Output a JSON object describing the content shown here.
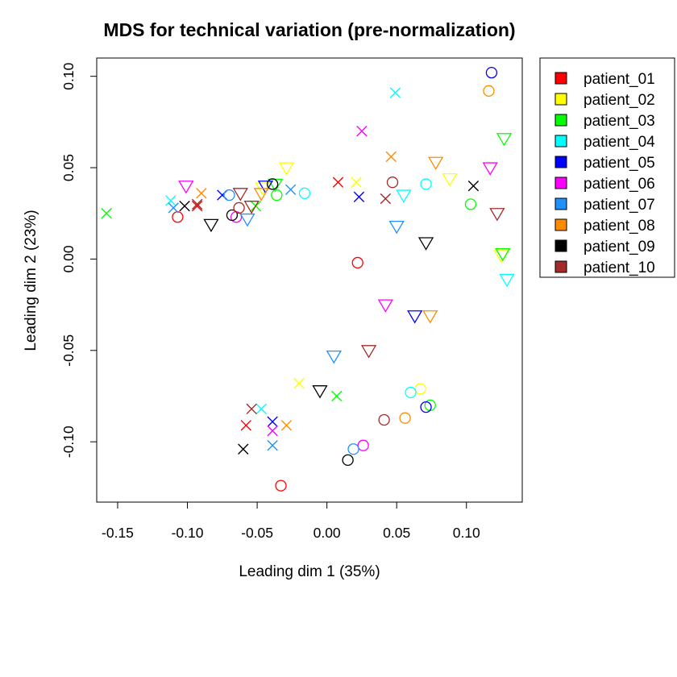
{
  "chart_data": {
    "type": "scatter",
    "title": "MDS for technical variation (pre-normalization)",
    "xlabel": "Leading dim 1 (35%)",
    "ylabel": "Leading dim 2 (23%)",
    "xlim": [
      -0.165,
      0.14
    ],
    "ylim": [
      -0.133,
      0.11
    ],
    "xticks": [
      {
        "value": -0.15,
        "label": "-0.15"
      },
      {
        "value": -0.1,
        "label": "-0.10"
      },
      {
        "value": -0.05,
        "label": "-0.05"
      },
      {
        "value": 0.0,
        "label": "0.00"
      },
      {
        "value": 0.05,
        "label": "0.05"
      },
      {
        "value": 0.1,
        "label": "0.10"
      }
    ],
    "yticks": [
      {
        "value": -0.1,
        "label": "-0.10"
      },
      {
        "value": -0.05,
        "label": "-0.05"
      },
      {
        "value": 0.0,
        "label": "0.00"
      },
      {
        "value": 0.05,
        "label": "0.05"
      },
      {
        "value": 0.1,
        "label": "0.10"
      }
    ],
    "grid": false,
    "legend_position": "outside-top-right",
    "series": [
      {
        "name": "patient_01",
        "color": "#FF0000",
        "points": [
          {
            "x": -0.107,
            "y": 0.023,
            "marker": "circle"
          },
          {
            "x": -0.033,
            "y": -0.124,
            "marker": "circle"
          },
          {
            "x": 0.022,
            "y": -0.002,
            "marker": "circle"
          },
          {
            "x": -0.093,
            "y": 0.029,
            "marker": "cross"
          },
          {
            "x": 0.008,
            "y": 0.042,
            "marker": "cross"
          },
          {
            "x": -0.058,
            "y": -0.091,
            "marker": "cross"
          }
        ]
      },
      {
        "name": "patient_02",
        "color": "#FFFF00",
        "points": [
          {
            "x": 0.067,
            "y": -0.071,
            "marker": "circle"
          },
          {
            "x": 0.021,
            "y": 0.042,
            "marker": "cross"
          },
          {
            "x": -0.02,
            "y": -0.068,
            "marker": "cross"
          },
          {
            "x": -0.029,
            "y": 0.05,
            "marker": "triangle"
          },
          {
            "x": -0.046,
            "y": 0.039,
            "marker": "triangle"
          },
          {
            "x": 0.088,
            "y": 0.044,
            "marker": "triangle"
          },
          {
            "x": 0.125,
            "y": 0.002,
            "marker": "triangle"
          }
        ]
      },
      {
        "name": "patient_03",
        "color": "#00FF00",
        "points": [
          {
            "x": 0.103,
            "y": 0.03,
            "marker": "circle"
          },
          {
            "x": -0.036,
            "y": 0.035,
            "marker": "circle"
          },
          {
            "x": 0.074,
            "y": -0.08,
            "marker": "circle"
          },
          {
            "x": -0.158,
            "y": 0.025,
            "marker": "cross"
          },
          {
            "x": 0.007,
            "y": -0.075,
            "marker": "cross"
          },
          {
            "x": -0.051,
            "y": 0.029,
            "marker": "cross"
          },
          {
            "x": 0.127,
            "y": 0.066,
            "marker": "triangle"
          },
          {
            "x": 0.126,
            "y": 0.003,
            "marker": "triangle"
          },
          {
            "x": -0.037,
            "y": 0.041,
            "marker": "triangle"
          }
        ]
      },
      {
        "name": "patient_04",
        "color": "#00FFFF",
        "points": [
          {
            "x": 0.071,
            "y": 0.041,
            "marker": "circle"
          },
          {
            "x": -0.016,
            "y": 0.036,
            "marker": "circle"
          },
          {
            "x": 0.06,
            "y": -0.073,
            "marker": "circle"
          },
          {
            "x": 0.049,
            "y": 0.091,
            "marker": "cross"
          },
          {
            "x": -0.112,
            "y": 0.032,
            "marker": "cross"
          },
          {
            "x": -0.047,
            "y": -0.082,
            "marker": "cross"
          },
          {
            "x": 0.055,
            "y": 0.035,
            "marker": "triangle"
          },
          {
            "x": 0.129,
            "y": -0.011,
            "marker": "triangle"
          }
        ]
      },
      {
        "name": "patient_05",
        "color": "#0000FF",
        "points": [
          {
            "x": 0.118,
            "y": 0.102,
            "marker": "circle"
          },
          {
            "x": 0.071,
            "y": -0.081,
            "marker": "circle"
          },
          {
            "x": 0.023,
            "y": 0.034,
            "marker": "cross"
          },
          {
            "x": -0.075,
            "y": 0.035,
            "marker": "cross"
          },
          {
            "x": -0.039,
            "y": -0.089,
            "marker": "cross"
          },
          {
            "x": -0.044,
            "y": 0.04,
            "marker": "triangle"
          },
          {
            "x": 0.063,
            "y": -0.031,
            "marker": "triangle"
          }
        ]
      },
      {
        "name": "patient_06",
        "color": "#FF00FF",
        "points": [
          {
            "x": 0.026,
            "y": -0.102,
            "marker": "circle"
          },
          {
            "x": -0.065,
            "y": 0.023,
            "marker": "circle"
          },
          {
            "x": 0.025,
            "y": 0.07,
            "marker": "cross"
          },
          {
            "x": -0.039,
            "y": -0.094,
            "marker": "cross"
          },
          {
            "x": -0.101,
            "y": 0.04,
            "marker": "triangle"
          },
          {
            "x": 0.117,
            "y": 0.05,
            "marker": "triangle"
          },
          {
            "x": 0.042,
            "y": -0.025,
            "marker": "triangle"
          }
        ]
      },
      {
        "name": "patient_07",
        "color": "#1E90FF",
        "points": [
          {
            "x": 0.019,
            "y": -0.104,
            "marker": "circle"
          },
          {
            "x": -0.07,
            "y": 0.035,
            "marker": "circle"
          },
          {
            "x": -0.026,
            "y": 0.038,
            "marker": "cross"
          },
          {
            "x": -0.039,
            "y": -0.102,
            "marker": "cross"
          },
          {
            "x": -0.11,
            "y": 0.028,
            "marker": "cross"
          },
          {
            "x": 0.005,
            "y": -0.053,
            "marker": "triangle"
          },
          {
            "x": 0.05,
            "y": 0.018,
            "marker": "triangle"
          },
          {
            "x": -0.057,
            "y": 0.022,
            "marker": "triangle"
          }
        ]
      },
      {
        "name": "patient_08",
        "color": "#FF8C00",
        "points": [
          {
            "x": 0.116,
            "y": 0.092,
            "marker": "circle"
          },
          {
            "x": 0.056,
            "y": -0.087,
            "marker": "circle"
          },
          {
            "x": 0.046,
            "y": 0.056,
            "marker": "cross"
          },
          {
            "x": -0.09,
            "y": 0.036,
            "marker": "cross"
          },
          {
            "x": -0.029,
            "y": -0.091,
            "marker": "cross"
          },
          {
            "x": 0.078,
            "y": 0.053,
            "marker": "triangle"
          },
          {
            "x": 0.074,
            "y": -0.031,
            "marker": "triangle"
          },
          {
            "x": -0.047,
            "y": 0.036,
            "marker": "triangle"
          }
        ]
      },
      {
        "name": "patient_09",
        "color": "#000000",
        "points": [
          {
            "x": 0.015,
            "y": -0.11,
            "marker": "circle"
          },
          {
            "x": -0.068,
            "y": 0.024,
            "marker": "circle"
          },
          {
            "x": -0.039,
            "y": 0.041,
            "marker": "circle"
          },
          {
            "x": 0.105,
            "y": 0.04,
            "marker": "cross"
          },
          {
            "x": -0.102,
            "y": 0.029,
            "marker": "cross"
          },
          {
            "x": -0.06,
            "y": -0.104,
            "marker": "cross"
          },
          {
            "x": 0.071,
            "y": 0.009,
            "marker": "triangle"
          },
          {
            "x": -0.083,
            "y": 0.019,
            "marker": "triangle"
          },
          {
            "x": -0.005,
            "y": -0.072,
            "marker": "triangle"
          }
        ]
      },
      {
        "name": "patient_10",
        "color": "#A52A2A",
        "points": [
          {
            "x": 0.047,
            "y": 0.042,
            "marker": "circle"
          },
          {
            "x": 0.041,
            "y": -0.088,
            "marker": "circle"
          },
          {
            "x": -0.063,
            "y": 0.028,
            "marker": "circle"
          },
          {
            "x": 0.042,
            "y": 0.033,
            "marker": "cross"
          },
          {
            "x": -0.054,
            "y": -0.082,
            "marker": "cross"
          },
          {
            "x": -0.093,
            "y": 0.03,
            "marker": "cross"
          },
          {
            "x": 0.122,
            "y": 0.025,
            "marker": "triangle"
          },
          {
            "x": 0.03,
            "y": -0.05,
            "marker": "triangle"
          },
          {
            "x": -0.062,
            "y": 0.036,
            "marker": "triangle"
          },
          {
            "x": -0.054,
            "y": 0.029,
            "marker": "triangle"
          }
        ]
      }
    ]
  }
}
